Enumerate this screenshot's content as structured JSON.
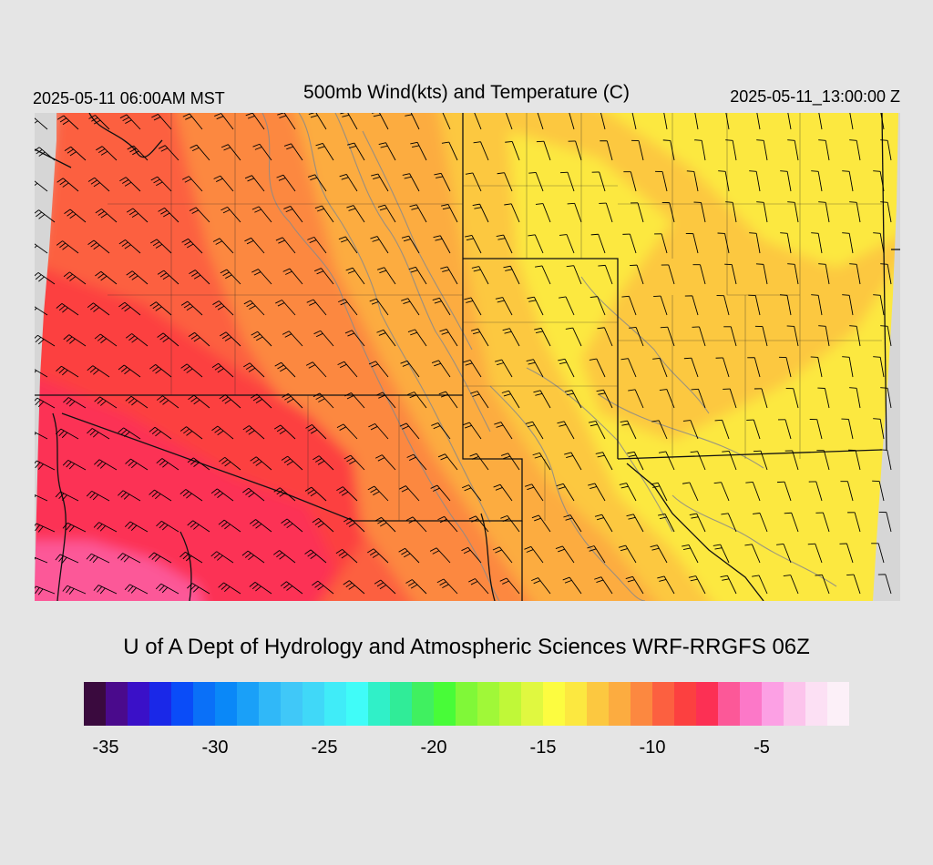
{
  "header": {
    "local_time": "2025-05-11 06:00AM MST",
    "title": "500mb Wind(kts) and Temperature (C)",
    "utc_time": "2025-05-11_13:00:00 Z"
  },
  "credit": "U of A Dept of Hydrology and Atmospheric Sciences WRF-RRGFS 06Z",
  "colorbar": {
    "min": -36,
    "step": 1,
    "colors": [
      "#3a0a3e",
      "#4a0a8c",
      "#3a10c8",
      "#1a28e8",
      "#0a4cf8",
      "#0a70f8",
      "#0a88f8",
      "#1aa0f8",
      "#30b8f8",
      "#40c8f8",
      "#40d8f8",
      "#40ecf8",
      "#40fcf8",
      "#30f0c8",
      "#30ec98",
      "#40f060",
      "#48fc38",
      "#80f838",
      "#a0f838",
      "#c0f838",
      "#e0f840",
      "#fcfc40",
      "#fce840",
      "#fcc840",
      "#fcac40",
      "#fc8840",
      "#fc6040",
      "#fc4040",
      "#fc3054",
      "#fc5898",
      "#fc78c8",
      "#fca0e4",
      "#fcc4ec",
      "#fce0f4",
      "#fcf0f8"
    ],
    "tick_labels": [
      {
        "value": -35,
        "label": "-35"
      },
      {
        "value": -30,
        "label": "-30"
      },
      {
        "value": -25,
        "label": "-25"
      },
      {
        "value": -20,
        "label": "-20"
      },
      {
        "value": -15,
        "label": "-15"
      },
      {
        "value": -10,
        "label": "-10"
      },
      {
        "value": -5,
        "label": "-5"
      }
    ]
  },
  "map": {
    "background": "#d6d6d6",
    "field_colors": {
      "pink": "#fc5898",
      "crimson": "#fc3054",
      "red": "#fc4040",
      "red_orange": "#fc6040",
      "orange": "#fc8840",
      "light_orange": "#fcac40",
      "gold": "#fcc840",
      "yellow": "#fce840"
    },
    "contour_color": "#8a8a8a",
    "boundary_color": "#111111",
    "barb_color": "#000000"
  }
}
